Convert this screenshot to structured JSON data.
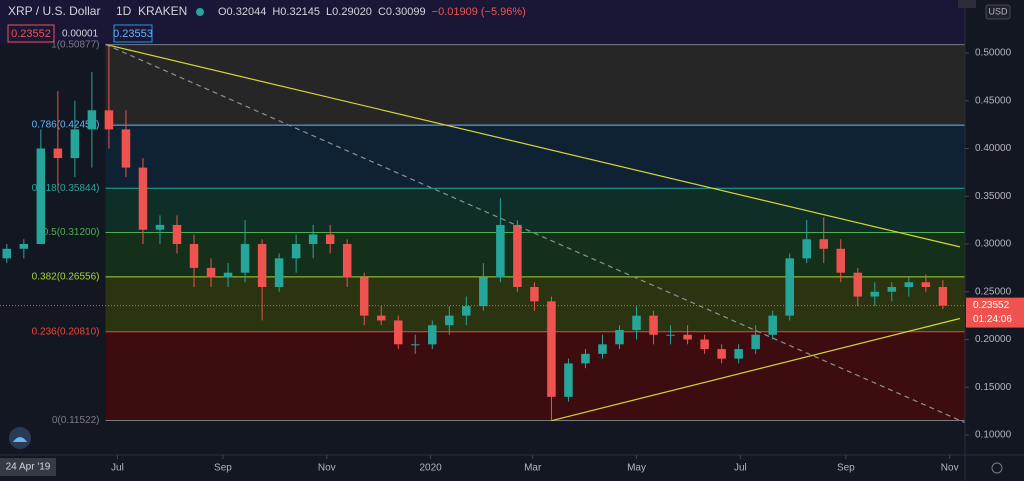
{
  "chart_data": {
    "type": "candlestick",
    "symbol": "XRP / U.S. Dollar",
    "interval": "1D",
    "exchange": "KRAKEN",
    "ohlc_legend": [
      "O0.32044",
      "H0.32145",
      "L0.29020",
      "C0.30099",
      "−0.01909 (−5.96%)"
    ],
    "bid_label": "0.23552",
    "spread_label": "0.00001",
    "ask_label": "0.23553",
    "currency": "USD",
    "crosshair_date": "24 Apr '19",
    "countdown": "01:24:06",
    "last_price": {
      "value": 0.23552,
      "label": "0.23552"
    },
    "xlim": [
      -69,
      498
    ],
    "xticks": [
      {
        "value": 0,
        "label": "Jul"
      },
      {
        "value": 62,
        "label": "Sep"
      },
      {
        "value": 123,
        "label": "Nov"
      },
      {
        "value": 184,
        "label": "2020"
      },
      {
        "value": 244,
        "label": "Mar"
      },
      {
        "value": 305,
        "label": "May"
      },
      {
        "value": 366,
        "label": "Jul"
      },
      {
        "value": 428,
        "label": "Sep"
      },
      {
        "value": 489,
        "label": "Nov"
      }
    ],
    "ylim": [
      0.0791,
      0.5555
    ],
    "yticks": [
      {
        "value": 0.1,
        "label": "0.10000"
      },
      {
        "value": 0.15,
        "label": "0.15000"
      },
      {
        "value": 0.2,
        "label": "0.20000"
      },
      {
        "value": 0.25,
        "label": "0.25000"
      },
      {
        "value": 0.3,
        "label": "0.30000"
      },
      {
        "value": 0.35,
        "label": "0.35000"
      },
      {
        "value": 0.4,
        "label": "0.40000"
      },
      {
        "value": 0.45,
        "label": "0.45000"
      },
      {
        "value": 0.5,
        "label": "0.50000"
      }
    ],
    "up_color": "#26a69a",
    "down_color": "#ef5350",
    "x": [
      -65,
      -55,
      -45,
      -35,
      -25,
      -15,
      -5,
      5,
      15,
      25,
      35,
      45,
      55,
      65,
      75,
      85,
      95,
      105,
      115,
      125,
      135,
      145,
      155,
      165,
      175,
      185,
      195,
      205,
      215,
      225,
      235,
      245,
      255,
      265,
      275,
      285,
      295,
      305,
      315,
      325,
      335,
      345,
      355,
      365,
      375,
      385,
      395,
      405,
      415,
      425,
      435,
      445,
      455,
      465,
      475,
      485
    ],
    "open": [
      0.285,
      0.295,
      0.3,
      0.4,
      0.39,
      0.42,
      0.44,
      0.42,
      0.38,
      0.315,
      0.32,
      0.3,
      0.275,
      0.265,
      0.27,
      0.3,
      0.255,
      0.285,
      0.3,
      0.31,
      0.3,
      0.265,
      0.225,
      0.22,
      0.195,
      0.195,
      0.215,
      0.225,
      0.235,
      0.265,
      0.32,
      0.255,
      0.24,
      0.14,
      0.175,
      0.185,
      0.195,
      0.21,
      0.225,
      0.205,
      0.205,
      0.2,
      0.19,
      0.18,
      0.19,
      0.205,
      0.225,
      0.285,
      0.305,
      0.295,
      0.27,
      0.245,
      0.25,
      0.255,
      0.26,
      0.255
    ],
    "high": [
      0.3,
      0.305,
      0.42,
      0.46,
      0.45,
      0.48,
      0.509,
      0.44,
      0.39,
      0.33,
      0.33,
      0.31,
      0.285,
      0.28,
      0.325,
      0.305,
      0.29,
      0.31,
      0.32,
      0.32,
      0.305,
      0.27,
      0.235,
      0.225,
      0.205,
      0.22,
      0.235,
      0.245,
      0.28,
      0.348,
      0.325,
      0.26,
      0.245,
      0.18,
      0.19,
      0.205,
      0.215,
      0.235,
      0.23,
      0.215,
      0.215,
      0.205,
      0.195,
      0.195,
      0.215,
      0.23,
      0.29,
      0.325,
      0.328,
      0.305,
      0.275,
      0.26,
      0.26,
      0.265,
      0.268,
      0.262
    ],
    "low": [
      0.28,
      0.285,
      0.3,
      0.36,
      0.37,
      0.38,
      0.4,
      0.37,
      0.3,
      0.3,
      0.29,
      0.255,
      0.255,
      0.255,
      0.26,
      0.22,
      0.25,
      0.27,
      0.285,
      0.29,
      0.255,
      0.215,
      0.215,
      0.19,
      0.185,
      0.19,
      0.205,
      0.215,
      0.23,
      0.26,
      0.25,
      0.23,
      0.115,
      0.135,
      0.17,
      0.18,
      0.19,
      0.2,
      0.195,
      0.195,
      0.195,
      0.185,
      0.175,
      0.175,
      0.185,
      0.2,
      0.22,
      0.28,
      0.28,
      0.26,
      0.235,
      0.235,
      0.24,
      0.245,
      0.25,
      0.232
    ],
    "close": [
      0.295,
      0.3,
      0.4,
      0.39,
      0.42,
      0.44,
      0.42,
      0.38,
      0.315,
      0.32,
      0.3,
      0.275,
      0.265,
      0.27,
      0.3,
      0.255,
      0.285,
      0.3,
      0.31,
      0.3,
      0.265,
      0.225,
      0.22,
      0.195,
      0.195,
      0.215,
      0.225,
      0.235,
      0.265,
      0.32,
      0.255,
      0.24,
      0.14,
      0.175,
      0.185,
      0.195,
      0.21,
      0.225,
      0.205,
      0.205,
      0.2,
      0.19,
      0.18,
      0.19,
      0.205,
      0.225,
      0.285,
      0.305,
      0.295,
      0.27,
      0.245,
      0.25,
      0.255,
      0.26,
      0.255,
      0.2355
    ],
    "fib_start": -7,
    "fib_levels": [
      {
        "label": "1(0.50877)",
        "value": 0.50877,
        "color": "#787b86",
        "fill": "#262626"
      },
      {
        "label": "0.786(0.42455)",
        "value": 0.42455,
        "color": "#64b5f6",
        "fill": "#0f2233"
      },
      {
        "label": "0.618(0.35844)",
        "value": 0.35844,
        "color": "#26a69a",
        "fill": "#0e2e27"
      },
      {
        "label": "0.5(0.31200)",
        "value": 0.312,
        "color": "#4caf50",
        "fill": "#15301a"
      },
      {
        "label": "0.382(0.26556)",
        "value": 0.26556,
        "color": "#a5d63a",
        "fill": "#2a3410"
      },
      {
        "label": "0.236(0.20810)",
        "value": 0.2081,
        "color": "#f44336",
        "fill": "#3c0c0e"
      },
      {
        "label": "0(0.11522)",
        "value": 0.11522,
        "color": "#787b86"
      }
    ],
    "trend_lines": [
      {
        "x": [
          -7,
          495
        ],
        "y": [
          0.509,
          0.297
        ],
        "color": "#d4d43a",
        "dashed": false
      },
      {
        "x": [
          255,
          495
        ],
        "y": [
          0.115,
          0.222
        ],
        "color": "#d4d43a",
        "dashed": false
      },
      {
        "x": [
          -7,
          498
        ],
        "y": [
          0.509,
          0.113
        ],
        "color": "#8a8d96",
        "dashed": true
      }
    ]
  }
}
